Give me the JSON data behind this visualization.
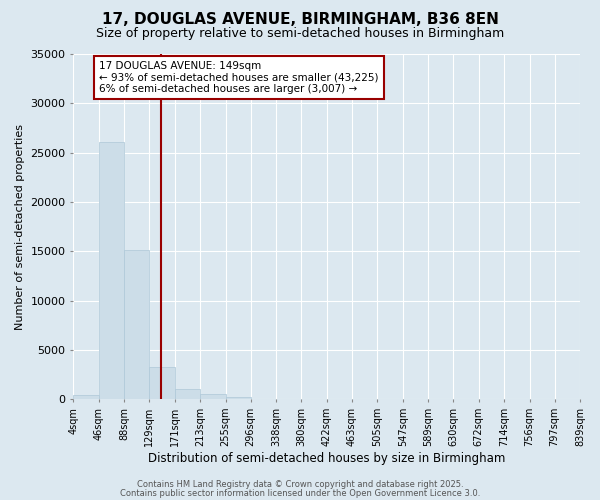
{
  "title": "17, DOUGLAS AVENUE, BIRMINGHAM, B36 8EN",
  "subtitle": "Size of property relative to semi-detached houses in Birmingham",
  "xlabel": "Distribution of semi-detached houses by size in Birmingham",
  "ylabel": "Number of semi-detached properties",
  "bin_edges": [
    4,
    46,
    88,
    129,
    171,
    213,
    255,
    296,
    338,
    380,
    422,
    463,
    505,
    547,
    589,
    630,
    672,
    714,
    756,
    797,
    839
  ],
  "bin_heights": [
    400,
    26100,
    15100,
    3300,
    1000,
    500,
    200,
    50,
    20,
    10,
    5,
    3,
    2,
    1,
    1,
    1,
    0,
    0,
    0,
    0
  ],
  "bar_color": "#ccdde8",
  "bar_edgecolor": "#aec8d8",
  "property_size": 149,
  "vline_color": "#990000",
  "ylim": [
    0,
    35000
  ],
  "annotation_text": "17 DOUGLAS AVENUE: 149sqm\n← 93% of semi-detached houses are smaller (43,225)\n6% of semi-detached houses are larger (3,007) →",
  "annotation_box_facecolor": "#ffffff",
  "annotation_box_edgecolor": "#990000",
  "footer_line1": "Contains HM Land Registry data © Crown copyright and database right 2025.",
  "footer_line2": "Contains public sector information licensed under the Open Government Licence 3.0.",
  "background_color": "#dce8f0",
  "grid_color": "#ffffff",
  "tick_labels": [
    "4sqm",
    "46sqm",
    "88sqm",
    "129sqm",
    "171sqm",
    "213sqm",
    "255sqm",
    "296sqm",
    "338sqm",
    "380sqm",
    "422sqm",
    "463sqm",
    "505sqm",
    "547sqm",
    "589sqm",
    "630sqm",
    "672sqm",
    "714sqm",
    "756sqm",
    "797sqm",
    "839sqm"
  ]
}
